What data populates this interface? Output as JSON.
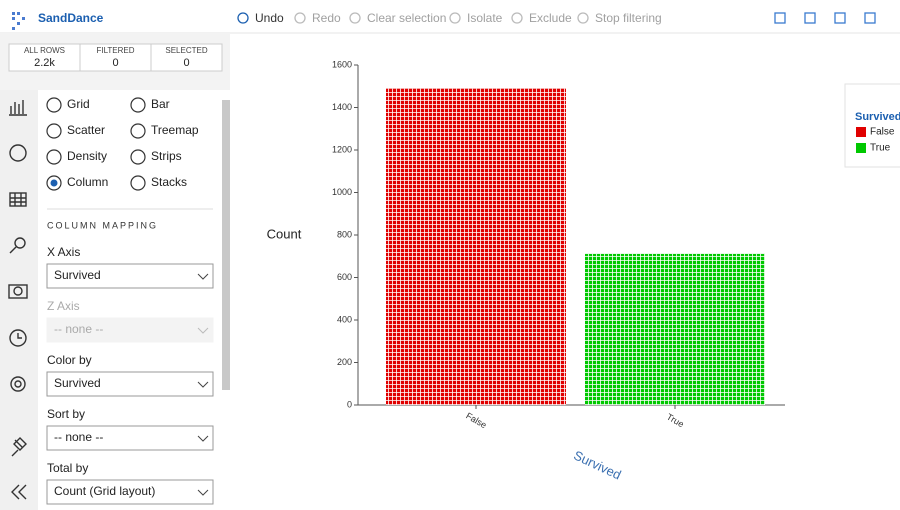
{
  "app": {
    "title": "SandDance"
  },
  "toolbar": [
    "Undo",
    "Redo",
    "Clear selection",
    "Isolate",
    "Exclude",
    "Stop filtering"
  ],
  "stats": [
    {
      "label": "ALL ROWS",
      "value": "2.2k"
    },
    {
      "label": "FILTERED",
      "value": 0
    },
    {
      "label": "SELECTED",
      "value": 0
    }
  ],
  "chart_types": [
    "Grid",
    "Bar",
    "Scatter",
    "Treemap",
    "Density",
    "Strips",
    "Column",
    "Stacks"
  ],
  "selected_chart_type": 6,
  "mapping": {
    "heading": "COLUMN MAPPING",
    "fields": [
      {
        "label": "X Axis",
        "value": "Survived",
        "disabled": false
      },
      {
        "label": "Z Axis",
        "value": "-- none --",
        "disabled": true
      },
      {
        "label": "Color by",
        "value": "Survived",
        "disabled": false
      },
      {
        "label": "Sort by",
        "value": "-- none --",
        "disabled": false
      },
      {
        "label": "Total by",
        "value": "Count (Grid layout)",
        "disabled": false
      }
    ]
  },
  "chart_data": {
    "type": "bar",
    "ylabel": "Count",
    "xlabel": "Survived",
    "legend_title": "Survived",
    "categories": [
      "False",
      "True"
    ],
    "values": [
      1490,
      711
    ],
    "colors": [
      "#e00000",
      "#00c800"
    ],
    "ylim": [
      0,
      1600
    ],
    "yticks": [
      0,
      200,
      400,
      600,
      800,
      1000,
      1200,
      1400,
      1600
    ],
    "legend": "top-right"
  }
}
